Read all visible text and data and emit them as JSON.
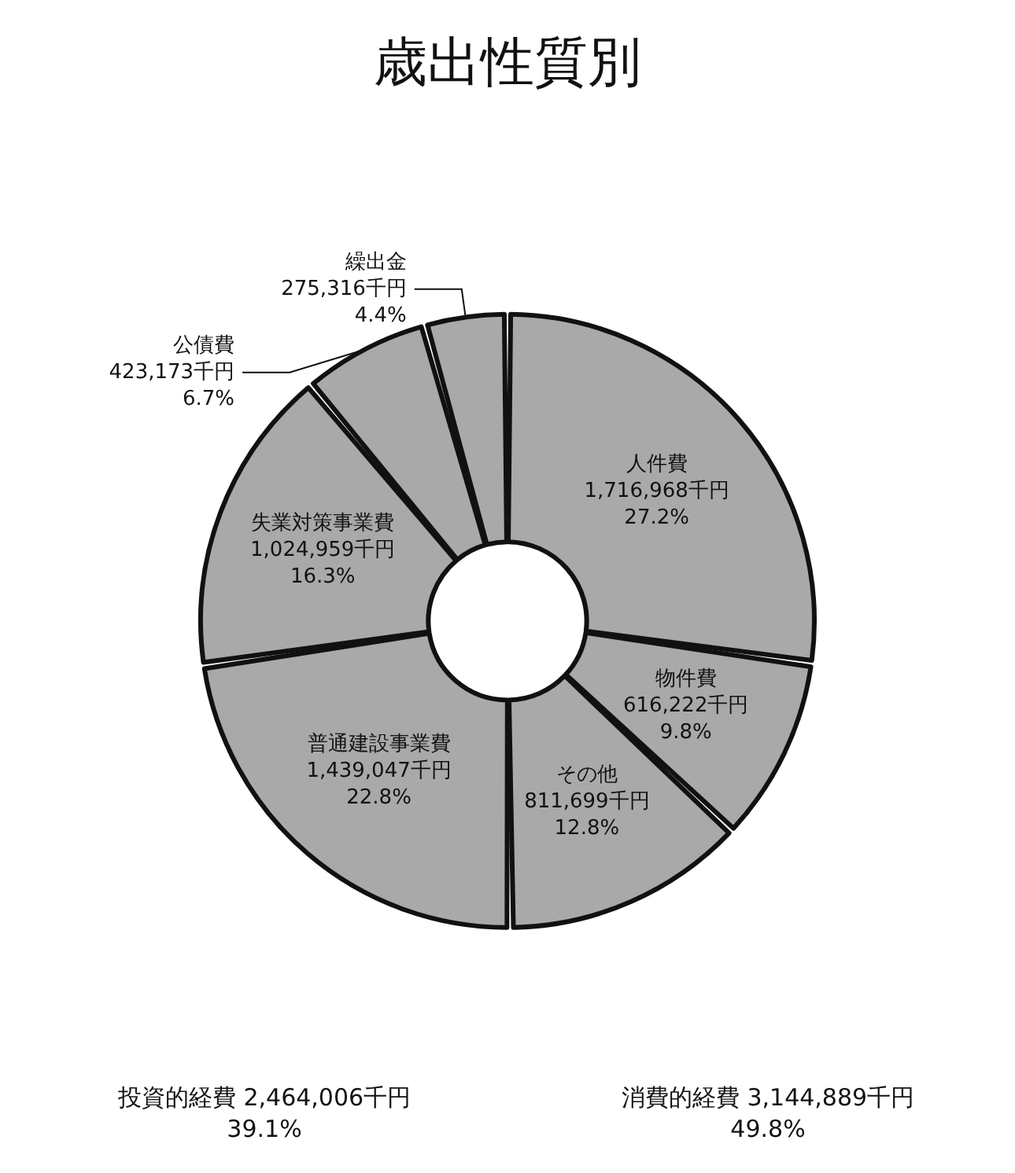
{
  "chart_data": {
    "type": "donut",
    "title": "歳出性質別",
    "categories": [
      "人件費",
      "物件費",
      "その他",
      "普通建設事業費",
      "失業対策事業費",
      "公債費",
      "繰出金"
    ],
    "values": [
      1716968,
      616222,
      811699,
      1439047,
      1024959,
      423173,
      275316
    ],
    "colors": [
      "#a9a9a9",
      "#a9a9a9",
      "#a9a9a9",
      "#a9a9a9",
      "#a9a9a9",
      "#a9a9a9",
      "#a9a9a9"
    ],
    "value_labels": [
      "1,716,968千円\n27.2%",
      "616,222千円\n9.8%",
      "811,699千円\n12.8%",
      "1,439,047千円\n22.8%",
      "1,024,959千円\n16.3%",
      "423,173千円\n6.7%",
      "275,316千円\n4.4%"
    ],
    "annotations": [
      "投資的経費 2,464,006千円\n39.1%",
      "消費的経費 3,144,889千円\n49.8%"
    ],
    "legend": false
  }
}
